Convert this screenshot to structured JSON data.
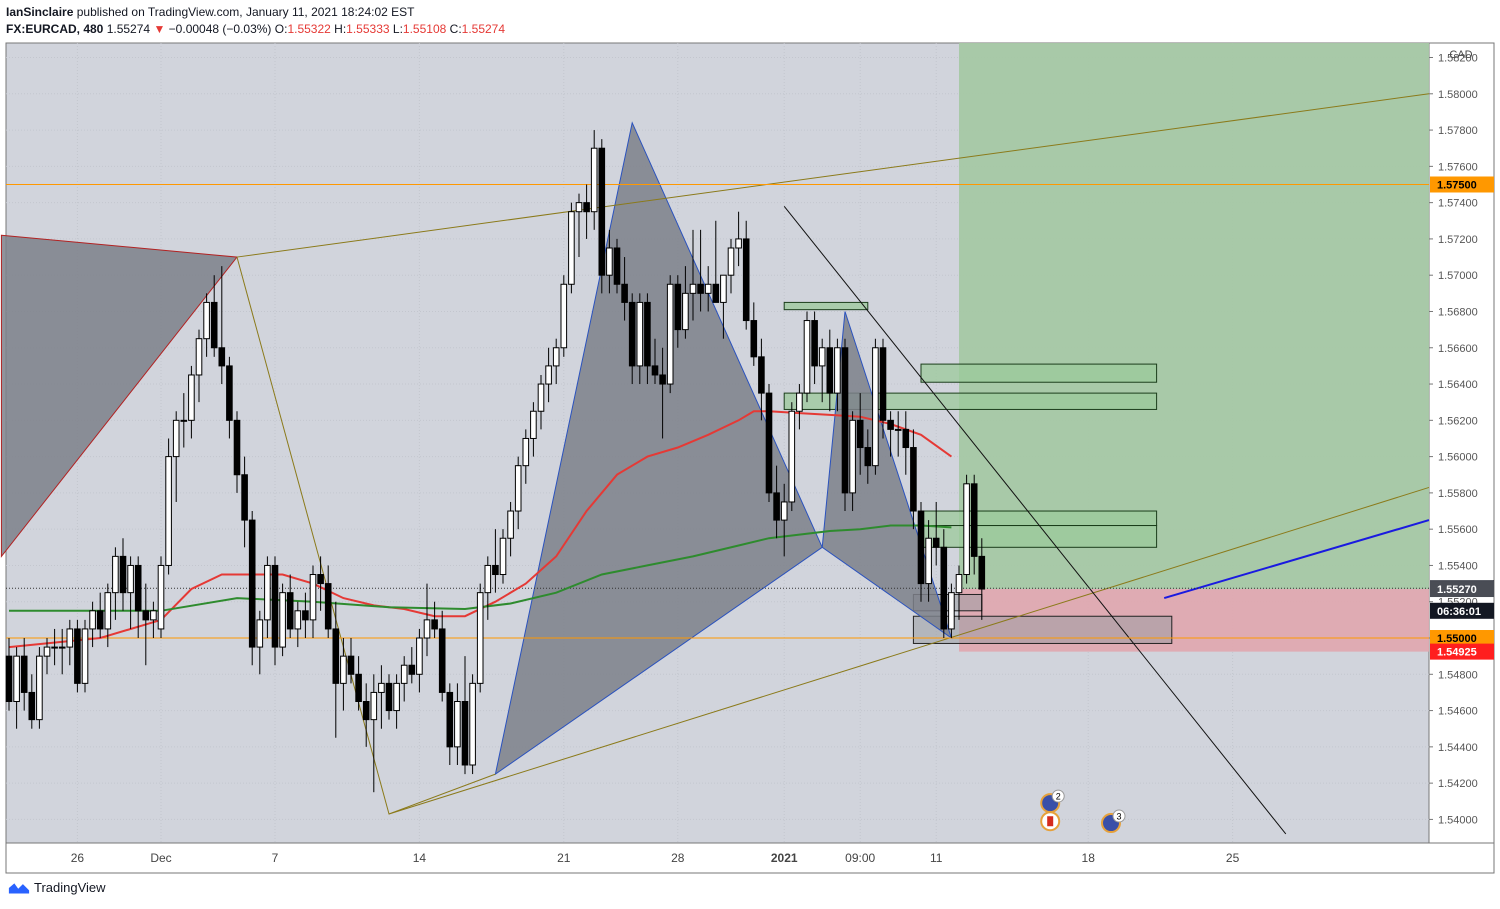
{
  "header": {
    "author": "IanSinclaire",
    "published": "published on TradingView.com, January 11, 2021 18:24:02 EST",
    "symbol": "FX:EURCAD, 480",
    "last": "1.55274",
    "arrow": "▼",
    "change": "−0.00048 (−0.03%)",
    "o_label": "O:",
    "o_value": "1.55322",
    "h_label": "H:",
    "h_value": "1.55333",
    "l_label": "L:",
    "l_value": "1.55108",
    "c_label": "C:",
    "c_value": "1.55274"
  },
  "footer": {
    "brand": "TradingView"
  },
  "colors": {
    "background": "#d1d4dc",
    "bull": "#ffffff",
    "bear": "#000000",
    "ema_red": "#e53935",
    "ema_green": "#2e8b2e",
    "target_zone": "#a5c8a4",
    "stop_zone": "#dfa9b0",
    "level_orange": "#ff9800",
    "pattern_fill": "#8d9099",
    "trend_line": "#8b7a1a",
    "blue_line": "#1a1ae0",
    "price_red": "#ff1e1e"
  },
  "chart_data": {
    "type": "candlestick",
    "currency": "CAD",
    "interval": "480",
    "ylim": [
      1.5387,
      1.5828
    ],
    "y_ticks": [
      "1.54000",
      "1.54200",
      "1.54400",
      "1.54600",
      "1.54800",
      "1.55000",
      "1.55200",
      "1.55400",
      "1.55600",
      "1.55800",
      "1.56000",
      "1.56200",
      "1.56400",
      "1.56600",
      "1.56800",
      "1.57000",
      "1.57200",
      "1.57400",
      "1.57600",
      "1.57800",
      "1.58000",
      "1.58200"
    ],
    "x_labels": [
      {
        "label": "26",
        "slot": 9
      },
      {
        "label": "Dec",
        "slot": 20
      },
      {
        "label": "7",
        "slot": 35
      },
      {
        "label": "14",
        "slot": 54
      },
      {
        "label": "21",
        "slot": 73
      },
      {
        "label": "28",
        "slot": 88
      },
      {
        "label": "2021",
        "slot": 102,
        "bold": true
      },
      {
        "label": "09:00",
        "slot": 112
      },
      {
        "label": "11",
        "slot": 122
      },
      {
        "label": "18",
        "slot": 142
      },
      {
        "label": "25",
        "slot": 161
      }
    ],
    "price_labels": [
      {
        "text": "1.57500",
        "value": 1.575,
        "kind": "orange"
      },
      {
        "text": "1.55274",
        "value": 1.55274,
        "kind": "dark"
      },
      {
        "text": "06:36:01",
        "value": 1.5515,
        "kind": "dark"
      },
      {
        "text": "1.55270",
        "value": 1.5527,
        "kind": "grey"
      },
      {
        "text": "1.55000",
        "value": 1.55,
        "kind": "orange"
      },
      {
        "text": "1.54925",
        "value": 1.54925,
        "kind": "red"
      }
    ],
    "horizontal_levels": [
      1.575,
      1.55
    ],
    "last_price": 1.55274,
    "candles": [
      [
        1.549,
        1.55,
        1.546,
        1.5465
      ],
      [
        1.5465,
        1.5495,
        1.545,
        1.549
      ],
      [
        1.549,
        1.55,
        1.546,
        1.547
      ],
      [
        1.547,
        1.548,
        1.545,
        1.5455
      ],
      [
        1.5455,
        1.5495,
        1.545,
        1.549
      ],
      [
        1.549,
        1.55,
        1.548,
        1.5495
      ],
      [
        1.5495,
        1.5505,
        1.5485,
        1.5495
      ],
      [
        1.5495,
        1.5505,
        1.548,
        1.5495
      ],
      [
        1.5495,
        1.551,
        1.5485,
        1.5505
      ],
      [
        1.5505,
        1.551,
        1.547,
        1.5475
      ],
      [
        1.5475,
        1.551,
        1.547,
        1.5505
      ],
      [
        1.5505,
        1.552,
        1.5495,
        1.5515
      ],
      [
        1.5515,
        1.5525,
        1.55,
        1.5505
      ],
      [
        1.5505,
        1.553,
        1.5495,
        1.5525
      ],
      [
        1.5525,
        1.555,
        1.551,
        1.5545
      ],
      [
        1.5545,
        1.5555,
        1.5515,
        1.5525
      ],
      [
        1.5525,
        1.5545,
        1.5505,
        1.554
      ],
      [
        1.554,
        1.5545,
        1.55,
        1.5515
      ],
      [
        1.5515,
        1.553,
        1.5485,
        1.551
      ],
      [
        1.551,
        1.552,
        1.55,
        1.5515
      ],
      [
        1.5505,
        1.5545,
        1.55,
        1.554
      ],
      [
        1.554,
        1.561,
        1.5535,
        1.56
      ],
      [
        1.56,
        1.5625,
        1.5575,
        1.562
      ],
      [
        1.562,
        1.5635,
        1.5605,
        1.562
      ],
      [
        1.562,
        1.565,
        1.561,
        1.5645
      ],
      [
        1.5645,
        1.567,
        1.563,
        1.5665
      ],
      [
        1.5665,
        1.569,
        1.5655,
        1.5685
      ],
      [
        1.5685,
        1.57,
        1.5655,
        1.566
      ],
      [
        1.566,
        1.5705,
        1.564,
        1.565
      ],
      [
        1.565,
        1.5655,
        1.561,
        1.562
      ],
      [
        1.562,
        1.5625,
        1.558,
        1.559
      ],
      [
        1.559,
        1.56,
        1.555,
        1.5565
      ],
      [
        1.5565,
        1.557,
        1.5485,
        1.5495
      ],
      [
        1.5495,
        1.5515,
        1.548,
        1.551
      ],
      [
        1.551,
        1.5545,
        1.55,
        1.554
      ],
      [
        1.554,
        1.5545,
        1.5485,
        1.5495
      ],
      [
        1.5495,
        1.553,
        1.549,
        1.5525
      ],
      [
        1.5525,
        1.5535,
        1.55,
        1.5505
      ],
      [
        1.5505,
        1.552,
        1.5495,
        1.5515
      ],
      [
        1.5515,
        1.5525,
        1.55,
        1.551
      ],
      [
        1.551,
        1.554,
        1.55,
        1.5535
      ],
      [
        1.5535,
        1.5545,
        1.5515,
        1.553
      ],
      [
        1.553,
        1.554,
        1.55,
        1.5505
      ],
      [
        1.5505,
        1.552,
        1.5445,
        1.5475
      ],
      [
        1.5475,
        1.55,
        1.546,
        1.549
      ],
      [
        1.549,
        1.55,
        1.5475,
        1.548
      ],
      [
        1.548,
        1.549,
        1.546,
        1.5465
      ],
      [
        1.5465,
        1.5475,
        1.544,
        1.5455
      ],
      [
        1.5455,
        1.548,
        1.5415,
        1.547
      ],
      [
        1.547,
        1.5485,
        1.545,
        1.5475
      ],
      [
        1.5475,
        1.548,
        1.5455,
        1.546
      ],
      [
        1.546,
        1.548,
        1.545,
        1.5475
      ],
      [
        1.5475,
        1.549,
        1.5465,
        1.5485
      ],
      [
        1.5485,
        1.5495,
        1.5475,
        1.548
      ],
      [
        1.548,
        1.5505,
        1.547,
        1.55
      ],
      [
        1.55,
        1.553,
        1.549,
        1.551
      ],
      [
        1.551,
        1.552,
        1.55,
        1.5505
      ],
      [
        1.5505,
        1.5515,
        1.5465,
        1.547
      ],
      [
        1.547,
        1.5475,
        1.543,
        1.544
      ],
      [
        1.544,
        1.5475,
        1.543,
        1.5465
      ],
      [
        1.5465,
        1.549,
        1.5425,
        1.543
      ],
      [
        1.543,
        1.548,
        1.5425,
        1.5475
      ],
      [
        1.5475,
        1.553,
        1.547,
        1.5525
      ],
      [
        1.5525,
        1.5545,
        1.551,
        1.554
      ],
      [
        1.554,
        1.556,
        1.5525,
        1.5535
      ],
      [
        1.5535,
        1.556,
        1.553,
        1.5555
      ],
      [
        1.5555,
        1.5575,
        1.5545,
        1.557
      ],
      [
        1.557,
        1.56,
        1.556,
        1.5595
      ],
      [
        1.5595,
        1.5615,
        1.5585,
        1.561
      ],
      [
        1.561,
        1.563,
        1.56,
        1.5625
      ],
      [
        1.5625,
        1.5645,
        1.5615,
        1.564
      ],
      [
        1.564,
        1.566,
        1.563,
        1.565
      ],
      [
        1.565,
        1.5665,
        1.564,
        1.566
      ],
      [
        1.566,
        1.57,
        1.5655,
        1.5695
      ],
      [
        1.5695,
        1.574,
        1.569,
        1.5735
      ],
      [
        1.5735,
        1.5745,
        1.571,
        1.574
      ],
      [
        1.574,
        1.575,
        1.572,
        1.5735
      ],
      [
        1.5735,
        1.578,
        1.5725,
        1.577
      ],
      [
        1.577,
        1.5775,
        1.569,
        1.57
      ],
      [
        1.57,
        1.5725,
        1.569,
        1.5715
      ],
      [
        1.5715,
        1.572,
        1.569,
        1.5695
      ],
      [
        1.5695,
        1.571,
        1.5675,
        1.5685
      ],
      [
        1.5685,
        1.569,
        1.564,
        1.565
      ],
      [
        1.565,
        1.569,
        1.564,
        1.5685
      ],
      [
        1.5685,
        1.569,
        1.564,
        1.565
      ],
      [
        1.565,
        1.5665,
        1.564,
        1.5645
      ],
      [
        1.5645,
        1.566,
        1.561,
        1.564
      ],
      [
        1.564,
        1.57,
        1.5635,
        1.5695
      ],
      [
        1.5695,
        1.57,
        1.566,
        1.567
      ],
      [
        1.567,
        1.5705,
        1.5665,
        1.569
      ],
      [
        1.569,
        1.5725,
        1.5675,
        1.5695
      ],
      [
        1.5695,
        1.5725,
        1.568,
        1.569
      ],
      [
        1.569,
        1.5705,
        1.568,
        1.5695
      ],
      [
        1.5695,
        1.573,
        1.5685,
        1.5685
      ],
      [
        1.5685,
        1.57,
        1.5665,
        1.57
      ],
      [
        1.57,
        1.572,
        1.569,
        1.5715
      ],
      [
        1.5715,
        1.5735,
        1.5705,
        1.572
      ],
      [
        1.572,
        1.573,
        1.567,
        1.5675
      ],
      [
        1.5675,
        1.5685,
        1.565,
        1.5655
      ],
      [
        1.5655,
        1.5665,
        1.562,
        1.5635
      ],
      [
        1.5635,
        1.564,
        1.5575,
        1.558
      ],
      [
        1.558,
        1.5595,
        1.5555,
        1.5565
      ],
      [
        1.5565,
        1.5585,
        1.5545,
        1.5575
      ],
      [
        1.5575,
        1.563,
        1.557,
        1.5625
      ],
      [
        1.5625,
        1.564,
        1.5615,
        1.5635
      ],
      [
        1.5635,
        1.568,
        1.563,
        1.5675
      ],
      [
        1.5675,
        1.568,
        1.564,
        1.565
      ],
      [
        1.565,
        1.5665,
        1.563,
        1.566
      ],
      [
        1.566,
        1.567,
        1.5625,
        1.5635
      ],
      [
        1.5635,
        1.5665,
        1.5625,
        1.566
      ],
      [
        1.566,
        1.5665,
        1.557,
        1.558
      ],
      [
        1.558,
        1.5625,
        1.557,
        1.562
      ],
      [
        1.562,
        1.5635,
        1.559,
        1.5605
      ],
      [
        1.5605,
        1.5615,
        1.5585,
        1.5595
      ],
      [
        1.5595,
        1.5665,
        1.559,
        1.566
      ],
      [
        1.566,
        1.5665,
        1.561,
        1.562
      ],
      [
        1.562,
        1.5625,
        1.56,
        1.5615
      ],
      [
        1.5615,
        1.5625,
        1.56,
        1.5615
      ],
      [
        1.5615,
        1.5625,
        1.559,
        1.5605
      ],
      [
        1.5605,
        1.5615,
        1.556,
        1.557
      ],
      [
        1.557,
        1.5575,
        1.552,
        1.553
      ],
      [
        1.553,
        1.5565,
        1.552,
        1.5555
      ],
      [
        1.5555,
        1.5575,
        1.554,
        1.555
      ],
      [
        1.555,
        1.556,
        1.55,
        1.5505
      ],
      [
        1.5505,
        1.553,
        1.55,
        1.5525
      ],
      [
        1.5525,
        1.554,
        1.551,
        1.5535
      ],
      [
        1.5535,
        1.559,
        1.553,
        1.5585
      ],
      [
        1.5585,
        1.559,
        1.5535,
        1.5545
      ],
      [
        1.5545,
        1.5555,
        1.551,
        1.5527
      ]
    ],
    "series": [
      {
        "name": "EMA",
        "color": "#e53935",
        "points": [
          [
            0,
            1.5495
          ],
          [
            12,
            1.55
          ],
          [
            20,
            1.551
          ],
          [
            24,
            1.5527
          ],
          [
            28,
            1.5535
          ],
          [
            32,
            1.5535
          ],
          [
            36,
            1.5535
          ],
          [
            40,
            1.553
          ],
          [
            44,
            1.5522
          ],
          [
            48,
            1.5518
          ],
          [
            52,
            1.5516
          ],
          [
            56,
            1.5512
          ],
          [
            60,
            1.5512
          ],
          [
            64,
            1.552
          ],
          [
            68,
            1.553
          ],
          [
            72,
            1.5545
          ],
          [
            76,
            1.557
          ],
          [
            80,
            1.559
          ],
          [
            84,
            1.56
          ],
          [
            88,
            1.5605
          ],
          [
            92,
            1.5612
          ],
          [
            96,
            1.562
          ],
          [
            98,
            1.5625
          ],
          [
            100,
            1.5625
          ],
          [
            104,
            1.5624
          ],
          [
            108,
            1.5623
          ],
          [
            112,
            1.5622
          ],
          [
            116,
            1.5618
          ],
          [
            120,
            1.5612
          ],
          [
            124,
            1.56
          ]
        ]
      },
      {
        "name": "EMA",
        "color": "#2e8b2e",
        "points": [
          [
            0,
            1.5515
          ],
          [
            10,
            1.5515
          ],
          [
            20,
            1.5515
          ],
          [
            30,
            1.5522
          ],
          [
            40,
            1.552
          ],
          [
            50,
            1.5517
          ],
          [
            60,
            1.5516
          ],
          [
            66,
            1.5519
          ],
          [
            72,
            1.5525
          ],
          [
            78,
            1.5535
          ],
          [
            84,
            1.554
          ],
          [
            90,
            1.5545
          ],
          [
            96,
            1.5551
          ],
          [
            100,
            1.5555
          ],
          [
            104,
            1.5557
          ],
          [
            108,
            1.5559
          ],
          [
            112,
            1.556
          ],
          [
            116,
            1.5562
          ],
          [
            120,
            1.5562
          ],
          [
            124,
            1.5561
          ]
        ]
      }
    ],
    "position": {
      "entry": 1.5527,
      "stop": 1.54925,
      "target": 1.5828,
      "start_slot": 125,
      "end_slot": 176
    },
    "demand_zones": [
      {
        "from_slot": 102,
        "to_slot": 113,
        "low": 1.5681,
        "high": 1.5685
      },
      {
        "from_slot": 120,
        "to_slot": 151,
        "low": 1.5641,
        "high": 1.5651
      },
      {
        "from_slot": 102,
        "to_slot": 151,
        "low": 1.5626,
        "high": 1.5635
      },
      {
        "from_slot": 120,
        "to_slot": 151,
        "low": 1.5562,
        "high": 1.557
      },
      {
        "from_slot": 120,
        "to_slot": 151,
        "low": 1.555,
        "high": 1.5562
      }
    ],
    "grey_zones": [
      {
        "from_slot": 119,
        "to_slot": 128,
        "low": 1.5515,
        "high": 1.5524
      },
      {
        "from_slot": 119,
        "to_slot": 153,
        "low": 1.5497,
        "high": 1.5512
      }
    ],
    "events": [
      {
        "label": "2"
      },
      {
        "label": "3"
      }
    ]
  }
}
